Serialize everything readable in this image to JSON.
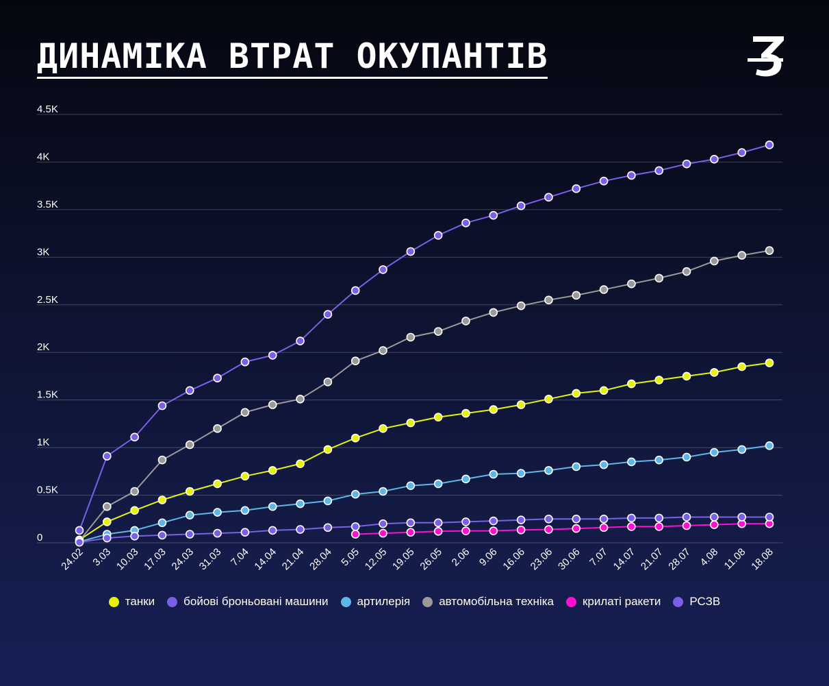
{
  "chart_data": {
    "type": "line",
    "title": "ДИНАМІКА ВТРАТ ОКУПАНТІВ",
    "xlabel": "",
    "ylabel": "",
    "ylim": [
      0,
      4500
    ],
    "yticks": [
      0,
      500,
      1000,
      1500,
      2000,
      2500,
      3000,
      3500,
      4000,
      4500
    ],
    "ytick_labels": [
      "0",
      "0.5K",
      "1K",
      "1.5K",
      "2K",
      "2.5K",
      "3K",
      "3.5K",
      "4K",
      "4.5K"
    ],
    "grid": true,
    "legend_position": "bottom",
    "categories": [
      "24.02",
      "3.03",
      "10.03",
      "17.03",
      "24.03",
      "31.03",
      "7.04",
      "14.04",
      "21.04",
      "28.04",
      "5.05",
      "12.05",
      "19.05",
      "26.05",
      "2.06",
      "9.06",
      "16.06",
      "23.06",
      "30.06",
      "7.07",
      "14.07",
      "21.07",
      "28.07",
      "4.08",
      "11.08",
      "18.08"
    ],
    "series": [
      {
        "name": "танки",
        "color": "#e6f20a",
        "values": [
          30,
          220,
          340,
          450,
          540,
          620,
          700,
          760,
          830,
          980,
          1100,
          1200,
          1260,
          1320,
          1360,
          1400,
          1450,
          1510,
          1570,
          1600,
          1670,
          1710,
          1750,
          1790,
          1850,
          1890
        ]
      },
      {
        "name": "бойові броньовані машини",
        "color": "#7a60e8",
        "values": [
          130,
          910,
          1110,
          1440,
          1600,
          1730,
          1900,
          1970,
          2120,
          2400,
          2650,
          2870,
          3060,
          3230,
          3360,
          3440,
          3540,
          3630,
          3720,
          3800,
          3860,
          3910,
          3980,
          4030,
          4100,
          4180
        ]
      },
      {
        "name": "артилерія",
        "color": "#5fb6e8",
        "values": [
          10,
          90,
          130,
          210,
          290,
          320,
          340,
          380,
          410,
          440,
          510,
          540,
          600,
          620,
          670,
          720,
          730,
          760,
          800,
          820,
          850,
          870,
          900,
          950,
          980,
          1020
        ]
      },
      {
        "name": "автомобільна техніка",
        "color": "#9a9a9a",
        "values": [
          20,
          380,
          540,
          870,
          1030,
          1200,
          1370,
          1450,
          1510,
          1690,
          1910,
          2020,
          2160,
          2220,
          2330,
          2420,
          2490,
          2550,
          2600,
          2660,
          2720,
          2780,
          2850,
          2960,
          3020,
          3070
        ]
      },
      {
        "name": "крилаті ракети",
        "color": "#ff10cf",
        "values": [
          null,
          null,
          null,
          null,
          null,
          null,
          null,
          null,
          null,
          null,
          90,
          100,
          110,
          120,
          125,
          125,
          135,
          140,
          150,
          160,
          170,
          170,
          180,
          190,
          200,
          200
        ]
      },
      {
        "name": "РСЗВ",
        "color": "#7a60e8",
        "values": [
          5,
          50,
          70,
          80,
          90,
          100,
          110,
          130,
          140,
          160,
          170,
          200,
          210,
          210,
          220,
          230,
          240,
          250,
          250,
          250,
          260,
          260,
          270,
          270,
          270,
          270
        ]
      }
    ]
  }
}
